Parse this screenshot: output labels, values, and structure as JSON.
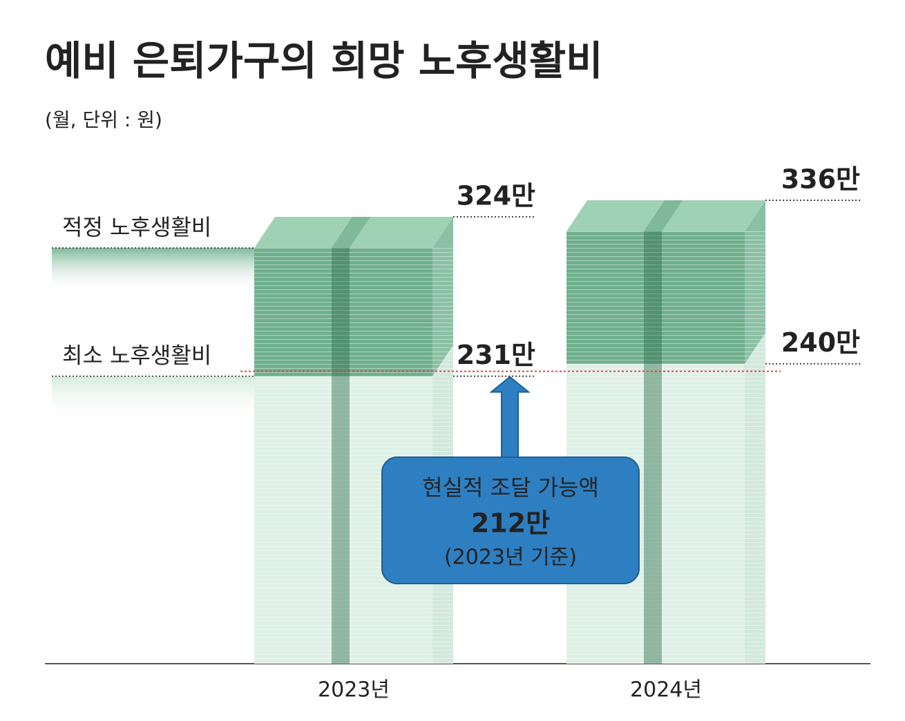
{
  "chart_data": {
    "type": "bar",
    "title": "예비 은퇴가구의 희망 노후생활비",
    "subtitle": "(월, 단위 : 원)",
    "categories": [
      "2023년",
      "2024년"
    ],
    "series": [
      {
        "name": "적정 노후생활비",
        "color": "#6fb08e",
        "values": [
          324,
          336
        ],
        "value_labels": [
          "324만",
          "336만"
        ]
      },
      {
        "name": "최소 노후생활비",
        "color": "#dff0e6",
        "values": [
          231,
          240
        ],
        "value_labels": [
          "231만",
          "240만"
        ]
      }
    ],
    "annotation": {
      "title": "현실적 조달 가능액",
      "value": 212,
      "value_label": "212만",
      "note": "(2023년 기준)",
      "color": "#2e7fc1",
      "line_color": "#e04545"
    }
  }
}
